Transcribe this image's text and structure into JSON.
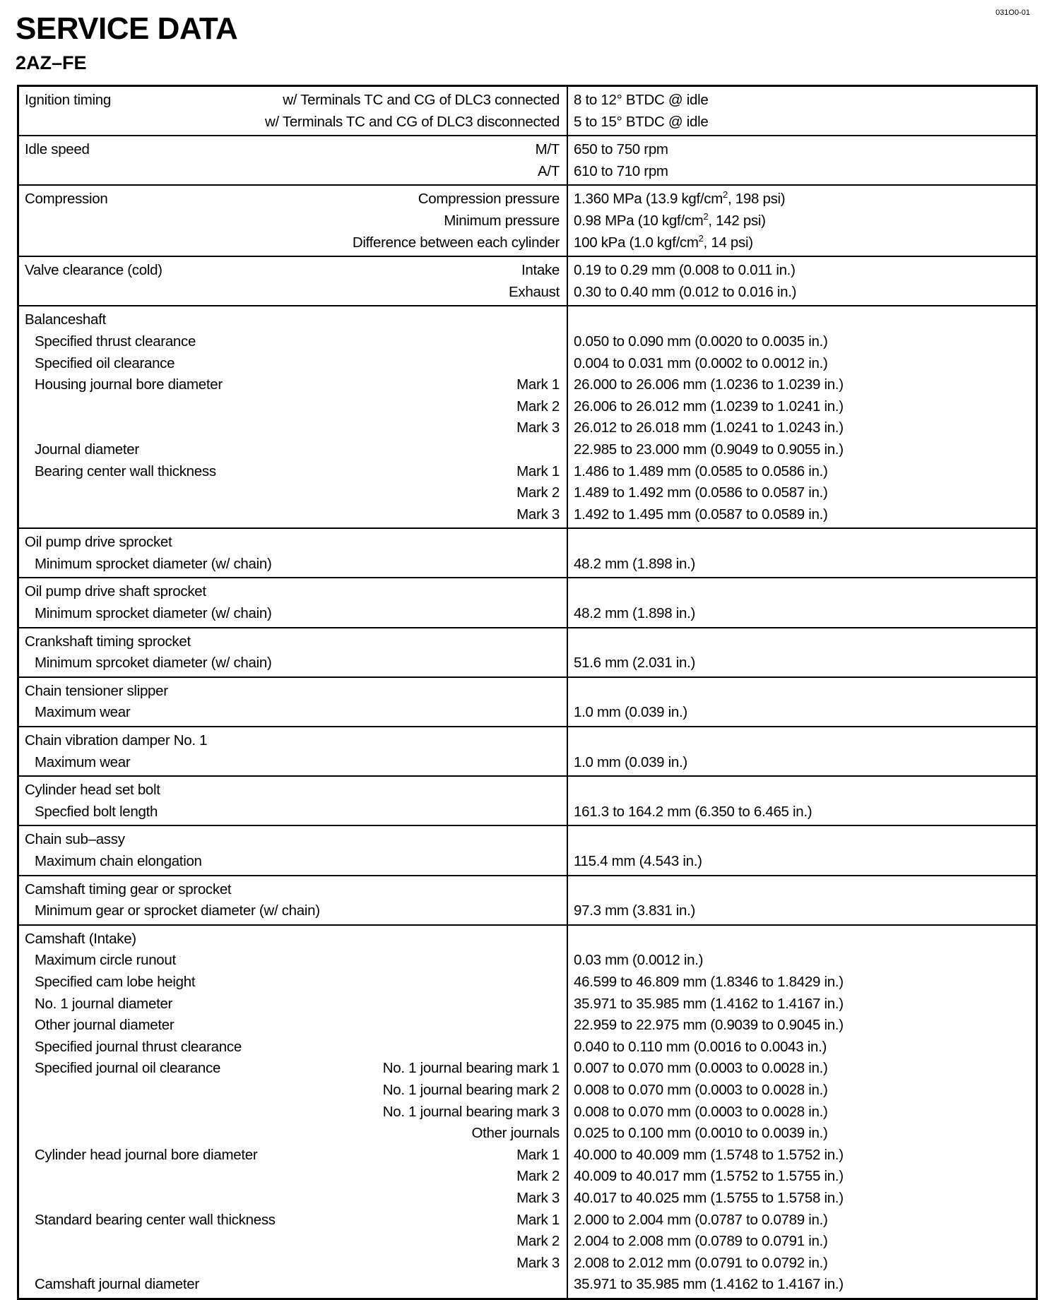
{
  "doc_code": "031O0-01",
  "title": "SERVICE DATA",
  "subtitle": "2AZ–FE",
  "sections": [
    {
      "rows": [
        {
          "label": "Ignition timing",
          "indent": false,
          "qualifier": "w/ Terminals TC and CG of DLC3 connected",
          "value": "8 to 12° BTDC @ idle"
        },
        {
          "label": "",
          "indent": false,
          "qualifier": "w/ Terminals TC and CG of DLC3 disconnected",
          "value": "5 to 15° BTDC @ idle"
        }
      ]
    },
    {
      "rows": [
        {
          "label": "Idle speed",
          "indent": false,
          "qualifier": "M/T",
          "value": "650 to 750 rpm"
        },
        {
          "label": "",
          "indent": false,
          "qualifier": "A/T",
          "value": "610 to 710 rpm"
        }
      ]
    },
    {
      "rows": [
        {
          "label": "Compression",
          "indent": false,
          "qualifier": "Compression pressure",
          "value": "1.360 MPa (13.9 kgf/cm², 198 psi)"
        },
        {
          "label": "",
          "indent": false,
          "qualifier": "Minimum pressure",
          "value": "0.98 MPa (10 kgf/cm², 142 psi)"
        },
        {
          "label": "",
          "indent": false,
          "qualifier": "Difference between each cylinder",
          "value": "100 kPa (1.0 kgf/cm², 14 psi)"
        }
      ]
    },
    {
      "rows": [
        {
          "label": "Valve clearance (cold)",
          "indent": false,
          "qualifier": "Intake",
          "value": "0.19 to 0.29 mm (0.008 to 0.011 in.)"
        },
        {
          "label": "",
          "indent": false,
          "qualifier": "Exhaust",
          "value": "0.30 to 0.40 mm (0.012 to 0.016 in.)"
        }
      ]
    },
    {
      "rows": [
        {
          "label": "Balanceshaft",
          "indent": false,
          "qualifier": "",
          "value": ""
        },
        {
          "label": "Specified thrust clearance",
          "indent": true,
          "qualifier": "",
          "value": "0.050 to 0.090 mm (0.0020 to 0.0035 in.)"
        },
        {
          "label": "Specified oil clearance",
          "indent": true,
          "qualifier": "",
          "value": "0.004 to 0.031 mm (0.0002 to 0.0012 in.)"
        },
        {
          "label": "Housing journal bore diameter",
          "indent": true,
          "qualifier": "Mark 1",
          "value": "26.000 to 26.006 mm (1.0236 to 1.0239 in.)"
        },
        {
          "label": "",
          "indent": true,
          "qualifier": "Mark 2",
          "value": "26.006 to 26.012 mm (1.0239 to 1.0241 in.)"
        },
        {
          "label": "",
          "indent": true,
          "qualifier": "Mark 3",
          "value": "26.012 to 26.018 mm (1.0241 to 1.0243 in.)"
        },
        {
          "label": "Journal diameter",
          "indent": true,
          "qualifier": "",
          "value": "22.985 to 23.000 mm (0.9049 to 0.9055 in.)"
        },
        {
          "label": "Bearing center wall thickness",
          "indent": true,
          "qualifier": "Mark 1",
          "value": "1.486 to 1.489 mm (0.0585 to 0.0586 in.)"
        },
        {
          "label": "",
          "indent": true,
          "qualifier": "Mark 2",
          "value": "1.489 to 1.492 mm (0.0586 to 0.0587 in.)"
        },
        {
          "label": "",
          "indent": true,
          "qualifier": "Mark 3",
          "value": "1.492 to 1.495 mm (0.0587 to 0.0589 in.)"
        }
      ]
    },
    {
      "rows": [
        {
          "label": "Oil pump drive sprocket",
          "indent": false,
          "qualifier": "",
          "value": ""
        },
        {
          "label": "Minimum sprocket diameter (w/ chain)",
          "indent": true,
          "qualifier": "",
          "value": "48.2 mm (1.898 in.)"
        }
      ]
    },
    {
      "rows": [
        {
          "label": "Oil pump drive shaft sprocket",
          "indent": false,
          "qualifier": "",
          "value": ""
        },
        {
          "label": "Minimum sprocket diameter (w/ chain)",
          "indent": true,
          "qualifier": "",
          "value": "48.2 mm (1.898 in.)"
        }
      ]
    },
    {
      "rows": [
        {
          "label": "Crankshaft timing sprocket",
          "indent": false,
          "qualifier": "",
          "value": ""
        },
        {
          "label": "Minimum sprcoket diameter (w/ chain)",
          "indent": true,
          "qualifier": "",
          "value": "51.6 mm (2.031 in.)"
        }
      ]
    },
    {
      "rows": [
        {
          "label": "Chain tensioner slipper",
          "indent": false,
          "qualifier": "",
          "value": ""
        },
        {
          "label": "Maximum wear",
          "indent": true,
          "qualifier": "",
          "value": "1.0 mm (0.039 in.)"
        }
      ]
    },
    {
      "rows": [
        {
          "label": "Chain vibration damper No. 1",
          "indent": false,
          "qualifier": "",
          "value": ""
        },
        {
          "label": "Maximum wear",
          "indent": true,
          "qualifier": "",
          "value": "1.0 mm (0.039 in.)"
        }
      ]
    },
    {
      "rows": [
        {
          "label": "Cylinder head set bolt",
          "indent": false,
          "qualifier": "",
          "value": ""
        },
        {
          "label": "Specfied bolt length",
          "indent": true,
          "qualifier": "",
          "value": "161.3 to 164.2 mm (6.350 to 6.465 in.)"
        }
      ]
    },
    {
      "rows": [
        {
          "label": "Chain sub–assy",
          "indent": false,
          "qualifier": "",
          "value": ""
        },
        {
          "label": "Maximum chain elongation",
          "indent": true,
          "qualifier": "",
          "value": "115.4 mm (4.543 in.)"
        }
      ]
    },
    {
      "rows": [
        {
          "label": "Camshaft timing gear or sprocket",
          "indent": false,
          "qualifier": "",
          "value": ""
        },
        {
          "label": "Minimum gear or sprocket diameter (w/ chain)",
          "indent": true,
          "qualifier": "",
          "value": "97.3 mm (3.831 in.)"
        }
      ]
    },
    {
      "rows": [
        {
          "label": "Camshaft (Intake)",
          "indent": false,
          "qualifier": "",
          "value": ""
        },
        {
          "label": "Maximum circle runout",
          "indent": true,
          "qualifier": "",
          "value": "0.03 mm (0.0012 in.)"
        },
        {
          "label": "Specified cam lobe height",
          "indent": true,
          "qualifier": "",
          "value": "46.599 to 46.809 mm (1.8346 to 1.8429 in.)"
        },
        {
          "label": "No. 1 journal diameter",
          "indent": true,
          "qualifier": "",
          "value": "35.971 to 35.985 mm (1.4162 to 1.4167 in.)"
        },
        {
          "label": "Other journal diameter",
          "indent": true,
          "qualifier": "",
          "value": "22.959 to 22.975 mm (0.9039 to 0.9045 in.)"
        },
        {
          "label": "Specified journal thrust clearance",
          "indent": true,
          "qualifier": "",
          "value": "0.040 to 0.110 mm (0.0016 to 0.0043 in.)"
        },
        {
          "label": "Specified journal oil clearance",
          "indent": true,
          "qualifier": "No. 1 journal bearing mark 1",
          "value": "0.007 to 0.070 mm (0.0003 to 0.0028 in.)"
        },
        {
          "label": "",
          "indent": true,
          "qualifier": "No. 1 journal bearing mark 2",
          "value": "0.008 to 0.070 mm (0.0003 to 0.0028 in.)"
        },
        {
          "label": "",
          "indent": true,
          "qualifier": "No. 1 journal bearing mark 3",
          "value": "0.008 to 0.070 mm (0.0003 to 0.0028 in.)"
        },
        {
          "label": "",
          "indent": true,
          "qualifier": "Other journals",
          "value": "0.025 to 0.100 mm (0.0010 to 0.0039 in.)"
        },
        {
          "label": "Cylinder head journal bore diameter",
          "indent": true,
          "qualifier": "Mark 1",
          "value": "40.000 to 40.009 mm (1.5748 to 1.5752 in.)"
        },
        {
          "label": "",
          "indent": true,
          "qualifier": "Mark 2",
          "value": "40.009 to 40.017 mm (1.5752 to 1.5755 in.)"
        },
        {
          "label": "",
          "indent": true,
          "qualifier": "Mark 3",
          "value": "40.017 to 40.025 mm (1.5755 to 1.5758 in.)"
        },
        {
          "label": "Standard bearing center wall thickness",
          "indent": true,
          "qualifier": "Mark 1",
          "value": "2.000 to 2.004 mm (0.0787 to 0.0789 in.)"
        },
        {
          "label": "",
          "indent": true,
          "qualifier": "Mark 2",
          "value": "2.004 to 2.008 mm (0.0789 to 0.0791 in.)"
        },
        {
          "label": "",
          "indent": true,
          "qualifier": "Mark 3",
          "value": "2.008 to 2.012 mm (0.0791 to 0.0792 in.)"
        },
        {
          "label": "Camshaft journal diameter",
          "indent": true,
          "qualifier": "",
          "value": "35.971 to 35.985 mm (1.4162 to 1.4167 in.)"
        }
      ]
    }
  ]
}
